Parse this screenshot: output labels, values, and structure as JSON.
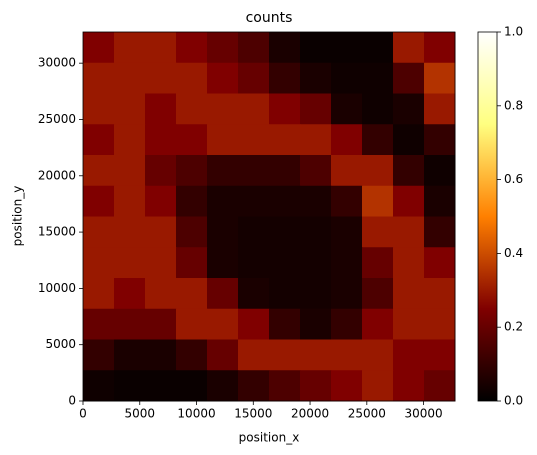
{
  "chart_data": {
    "type": "heatmap",
    "title": "counts",
    "x_label": "position_x",
    "y_label": "position_y",
    "colormap": "afmhot",
    "xlim": [
      0,
      32768
    ],
    "ylim": [
      0,
      32768
    ],
    "xticks": [
      0,
      5000,
      10000,
      15000,
      20000,
      25000,
      30000
    ],
    "yticks": [
      0,
      5000,
      10000,
      15000,
      20000,
      25000,
      30000
    ],
    "clim": [
      0,
      1
    ],
    "cticks": [
      {
        "value": 0,
        "label": "0.0"
      },
      {
        "value": 0.2,
        "label": "0.2"
      },
      {
        "value": 0.4,
        "label": "0.4"
      },
      {
        "value": 0.6,
        "label": "0.6"
      },
      {
        "value": 0.8,
        "label": "0.8"
      },
      {
        "value": 1,
        "label": "1.0"
      }
    ],
    "z": [
      [
        0.25,
        0.3,
        0.3,
        0.25,
        0.2,
        0.15,
        0.05,
        0.02,
        0.02,
        0.02,
        0.3,
        0.25
      ],
      [
        0.3,
        0.3,
        0.3,
        0.3,
        0.25,
        0.2,
        0.1,
        0.05,
        0.03,
        0.03,
        0.15,
        0.35
      ],
      [
        0.3,
        0.3,
        0.25,
        0.3,
        0.3,
        0.3,
        0.25,
        0.2,
        0.05,
        0.03,
        0.05,
        0.3
      ],
      [
        0.25,
        0.3,
        0.25,
        0.25,
        0.3,
        0.3,
        0.3,
        0.3,
        0.25,
        0.1,
        0.03,
        0.1
      ],
      [
        0.3,
        0.3,
        0.2,
        0.15,
        0.1,
        0.1,
        0.1,
        0.15,
        0.3,
        0.3,
        0.1,
        0.03
      ],
      [
        0.25,
        0.3,
        0.25,
        0.1,
        0.05,
        0.05,
        0.05,
        0.05,
        0.1,
        0.35,
        0.25,
        0.05
      ],
      [
        0.3,
        0.3,
        0.3,
        0.15,
        0.05,
        0.04,
        0.04,
        0.04,
        0.05,
        0.3,
        0.3,
        0.1
      ],
      [
        0.3,
        0.3,
        0.3,
        0.2,
        0.05,
        0.04,
        0.04,
        0.04,
        0.05,
        0.2,
        0.3,
        0.25
      ],
      [
        0.3,
        0.25,
        0.3,
        0.3,
        0.2,
        0.05,
        0.04,
        0.04,
        0.05,
        0.15,
        0.3,
        0.3
      ],
      [
        0.2,
        0.2,
        0.2,
        0.3,
        0.3,
        0.25,
        0.1,
        0.05,
        0.1,
        0.25,
        0.3,
        0.3
      ],
      [
        0.1,
        0.05,
        0.05,
        0.1,
        0.2,
        0.3,
        0.3,
        0.3,
        0.3,
        0.3,
        0.25,
        0.25
      ],
      [
        0.03,
        0.02,
        0.02,
        0.02,
        0.05,
        0.1,
        0.15,
        0.2,
        0.25,
        0.3,
        0.25,
        0.2
      ]
    ]
  }
}
